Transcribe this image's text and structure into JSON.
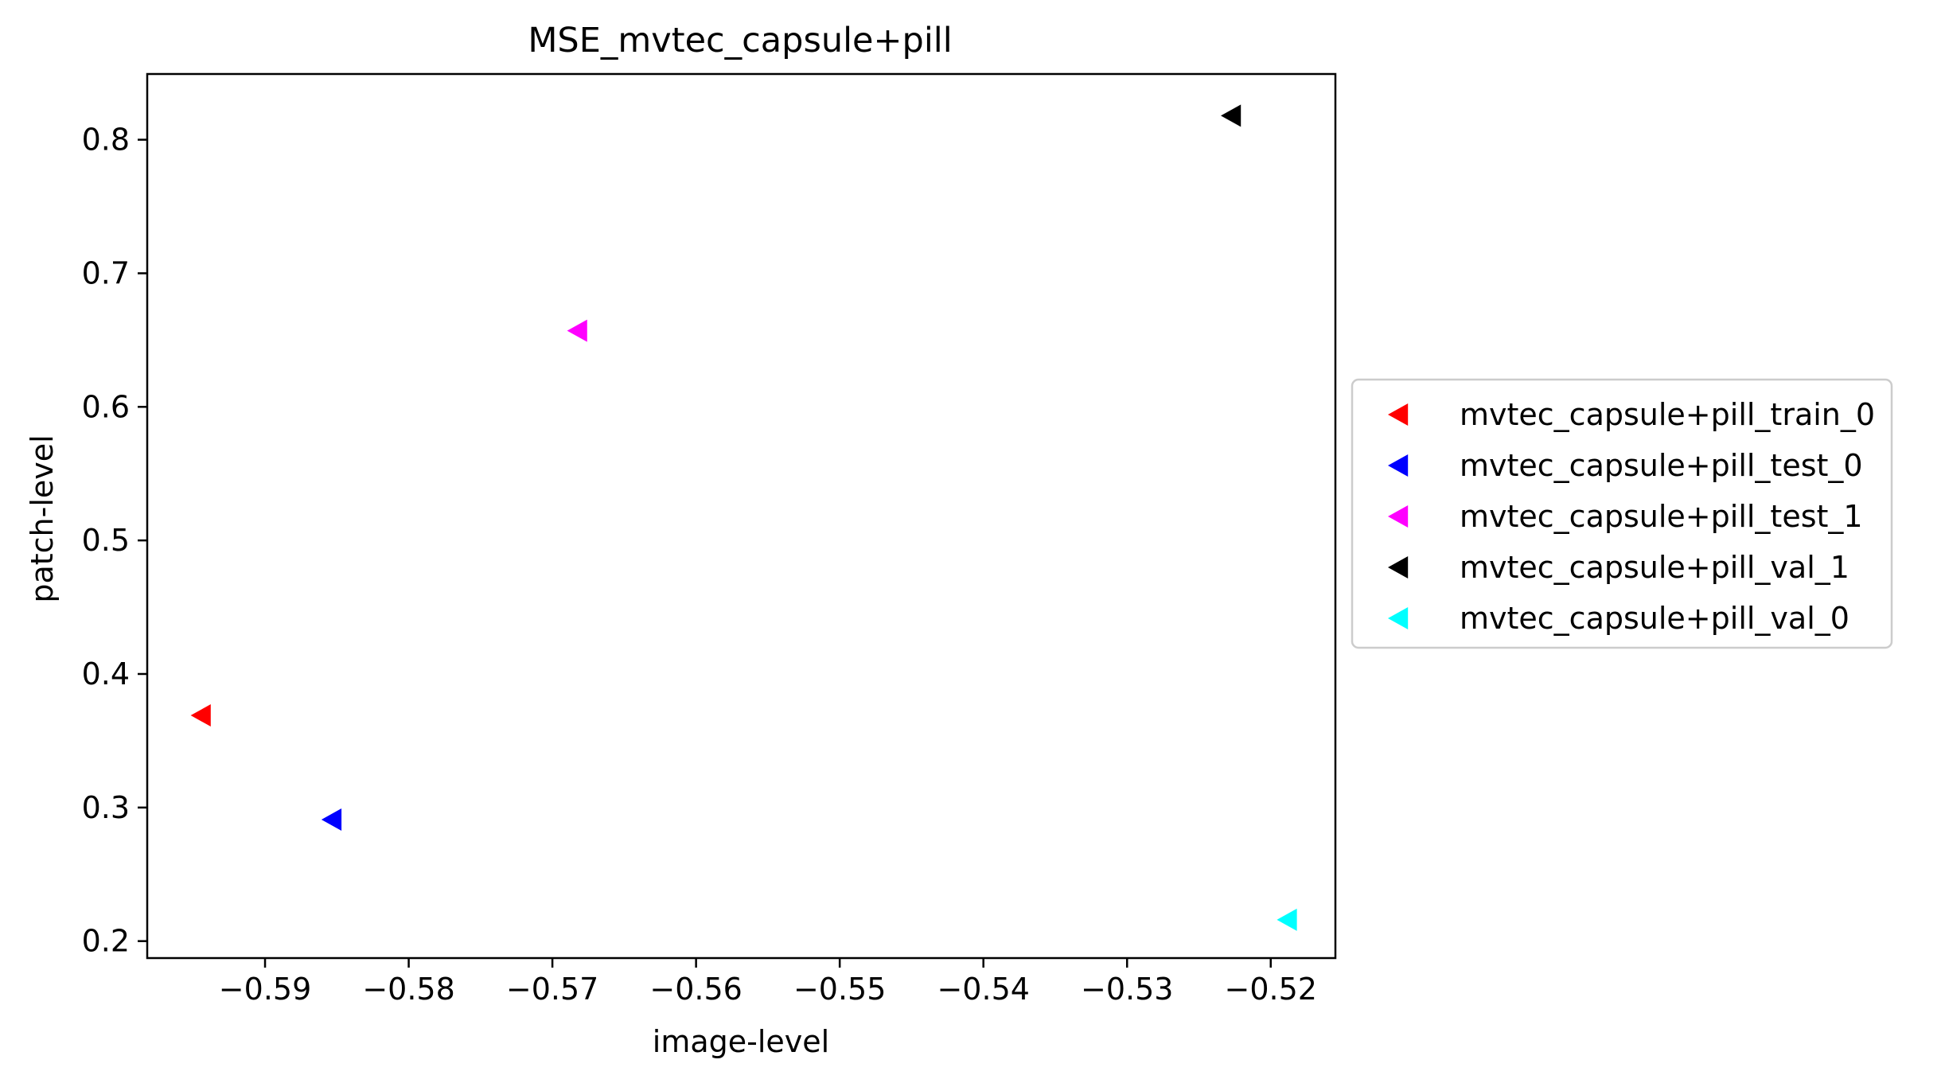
{
  "chart_data": {
    "type": "scatter",
    "title": "MSE_mvtec_capsule+pill",
    "xlabel": "image-level",
    "ylabel": "patch-level",
    "xlim": [
      -0.5982,
      -0.5155
    ],
    "ylim": [
      0.1873,
      0.8492
    ],
    "xticks": [
      -0.59,
      -0.58,
      -0.57,
      -0.56,
      -0.55,
      -0.54,
      -0.53,
      -0.52
    ],
    "xtick_labels": [
      "−0.59",
      "−0.58",
      "−0.57",
      "−0.56",
      "−0.55",
      "−0.54",
      "−0.53",
      "−0.52"
    ],
    "yticks": [
      0.2,
      0.3,
      0.4,
      0.5,
      0.6,
      0.7,
      0.8
    ],
    "ytick_labels": [
      "0.2",
      "0.3",
      "0.4",
      "0.5",
      "0.6",
      "0.7",
      "0.8"
    ],
    "grid": false,
    "legend_position": "outside-right",
    "marker": "triangle-left",
    "series": [
      {
        "name": "mvtec_capsule+pill_train_0",
        "color": "#ff0000",
        "points": [
          {
            "x": -0.5944,
            "y": 0.369
          }
        ]
      },
      {
        "name": "mvtec_capsule+pill_test_0",
        "color": "#0000ff",
        "points": [
          {
            "x": -0.5853,
            "y": 0.291
          }
        ]
      },
      {
        "name": "mvtec_capsule+pill_test_1",
        "color": "#ff00ff",
        "points": [
          {
            "x": -0.5682,
            "y": 0.657
          }
        ]
      },
      {
        "name": "mvtec_capsule+pill_val_1",
        "color": "#000000",
        "points": [
          {
            "x": -0.5227,
            "y": 0.818
          }
        ]
      },
      {
        "name": "mvtec_capsule+pill_val_0",
        "color": "#00ffff",
        "points": [
          {
            "x": -0.5188,
            "y": 0.216
          }
        ]
      }
    ]
  }
}
